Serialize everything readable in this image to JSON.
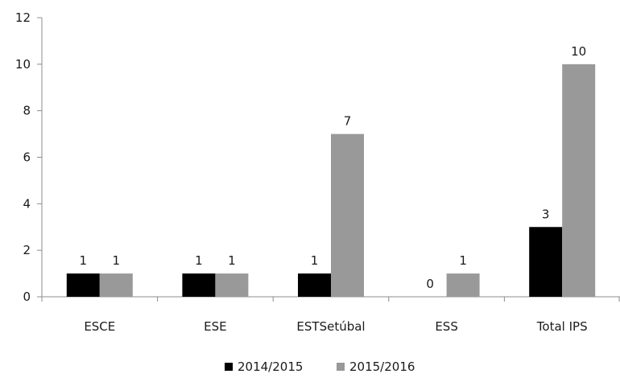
{
  "chart_data": {
    "type": "bar",
    "categories": [
      "ESCE",
      "ESE",
      "ESTSetúbal",
      "ESS",
      "Total IPS"
    ],
    "series": [
      {
        "name": "2014/2015",
        "values": [
          1,
          1,
          1,
          0,
          3
        ],
        "color": "#000000"
      },
      {
        "name": "2015/2016",
        "values": [
          1,
          1,
          7,
          1,
          10
        ],
        "color": "#999999"
      }
    ],
    "y_ticks": [
      "0",
      "2",
      "4",
      "6",
      "8",
      "10",
      "12"
    ],
    "ylim": [
      0,
      12
    ],
    "grid": false,
    "legend_position": "bottom"
  }
}
